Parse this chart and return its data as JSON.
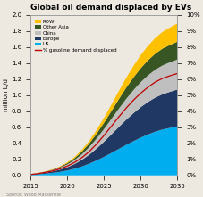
{
  "title": "Global oil demand displaced by EVs",
  "ylabel_left": "million b/d",
  "source": "Source: Wood Mackenzie",
  "years": [
    2015,
    2016,
    2017,
    2018,
    2019,
    2020,
    2021,
    2022,
    2023,
    2024,
    2025,
    2026,
    2027,
    2028,
    2029,
    2030,
    2031,
    2032,
    2033,
    2034,
    2035
  ],
  "us": [
    0.008,
    0.013,
    0.02,
    0.03,
    0.043,
    0.06,
    0.082,
    0.11,
    0.145,
    0.185,
    0.23,
    0.278,
    0.328,
    0.378,
    0.425,
    0.47,
    0.51,
    0.545,
    0.572,
    0.592,
    0.61
  ],
  "europe": [
    0.003,
    0.007,
    0.012,
    0.018,
    0.027,
    0.04,
    0.058,
    0.082,
    0.112,
    0.148,
    0.188,
    0.23,
    0.272,
    0.312,
    0.348,
    0.38,
    0.405,
    0.425,
    0.44,
    0.45,
    0.46
  ],
  "china": [
    0.003,
    0.006,
    0.01,
    0.016,
    0.024,
    0.035,
    0.05,
    0.07,
    0.095,
    0.125,
    0.158,
    0.193,
    0.228,
    0.26,
    0.288,
    0.312,
    0.332,
    0.348,
    0.36,
    0.368,
    0.375
  ],
  "other_asia": [
    0.001,
    0.002,
    0.004,
    0.006,
    0.01,
    0.015,
    0.022,
    0.032,
    0.045,
    0.06,
    0.078,
    0.097,
    0.118,
    0.138,
    0.157,
    0.174,
    0.188,
    0.2,
    0.21,
    0.216,
    0.222
  ],
  "row": [
    0.001,
    0.002,
    0.003,
    0.005,
    0.007,
    0.011,
    0.016,
    0.023,
    0.033,
    0.046,
    0.062,
    0.08,
    0.1,
    0.122,
    0.143,
    0.163,
    0.18,
    0.196,
    0.208,
    0.218,
    0.227
  ],
  "pct_displaced": [
    0.05,
    0.1,
    0.18,
    0.27,
    0.4,
    0.57,
    0.8,
    1.1,
    1.48,
    1.95,
    2.48,
    3.05,
    3.63,
    4.18,
    4.68,
    5.12,
    5.5,
    5.82,
    6.05,
    6.21,
    6.35
  ],
  "colors": {
    "us": "#00aeef",
    "europe": "#1f3864",
    "china": "#bfbfbf",
    "other_asia": "#375623",
    "row": "#ffc000"
  },
  "pct_color": "#c00000",
  "ylim_left": [
    0,
    2.0
  ],
  "ylim_right": [
    0,
    10
  ],
  "xlim": [
    2015,
    2035
  ],
  "bg_color": "#ede8e0",
  "title_fontsize": 6.5,
  "label_fontsize": 5,
  "tick_fontsize": 5
}
